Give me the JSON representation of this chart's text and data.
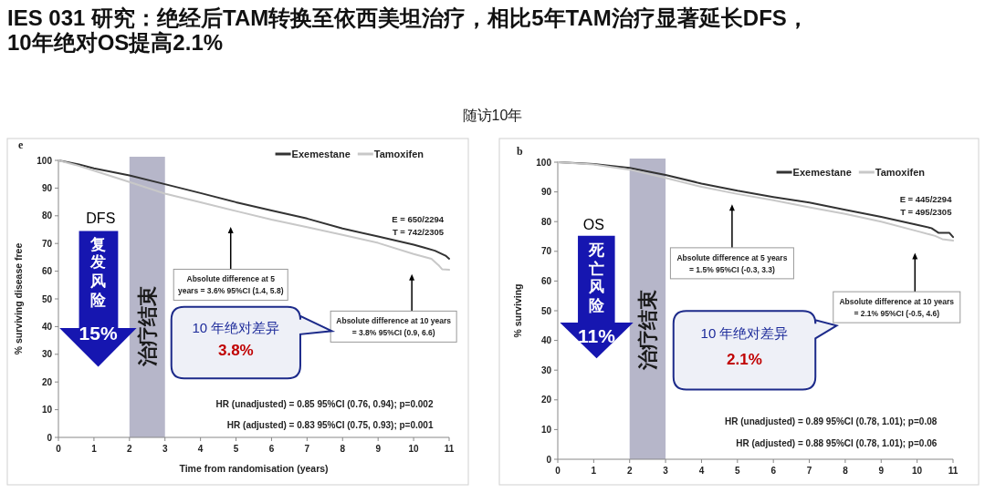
{
  "chart_data": [
    {
      "type": "line",
      "title": "IES 031 研究：绝经后TAM转换至依西美坦治疗，相比5年TAM治疗显著延长DFS，10年绝对OS提高2.1%",
      "xlabel": "Time from randomisation (years)",
      "ylabel": "% surviving disease free",
      "xlim": [
        0,
        11
      ],
      "ylim": [
        0,
        100
      ],
      "xticks": [
        0,
        1,
        2,
        3,
        4,
        5,
        6,
        7,
        8,
        9,
        10,
        11
      ],
      "yticks": [
        0,
        10,
        20,
        30,
        40,
        50,
        60,
        70,
        80,
        90,
        100
      ],
      "legend": "top right",
      "series": [
        {
          "name": "Exemestane",
          "color": "#333333",
          "x": [
            0,
            0.58,
            1,
            2,
            3,
            4,
            5,
            6,
            7,
            8,
            9,
            10,
            10.3,
            10.6,
            10.9,
            11
          ],
          "values": [
            100,
            98.5,
            97.1,
            94.6,
            91.4,
            88.2,
            84.9,
            81.9,
            79.0,
            75.4,
            72.5,
            69.6,
            68.5,
            67.4,
            65.6,
            64.5
          ]
        },
        {
          "name": "Tamoxifen",
          "color": "#c8c8c8",
          "x": [
            0,
            0.5,
            1,
            2,
            3,
            4,
            5,
            6,
            7,
            8,
            9,
            10,
            10.5,
            10.7,
            10.8,
            11
          ],
          "values": [
            100,
            98.3,
            96.3,
            92.2,
            88.0,
            84.9,
            81.7,
            78.6,
            75.9,
            73.1,
            70.2,
            66.2,
            64.5,
            62.2,
            60.7,
            60.5
          ]
        }
      ],
      "bands": [
        {
          "axis": "x",
          "from": 2,
          "to": 3,
          "label": "治疗结束",
          "color": "#a9a9bf"
        }
      ],
      "annotations": [
        "e",
        "DFS",
        "复发风险",
        "15%",
        "E = 650/2294",
        "T = 742/2305",
        "Absolute difference at 5 years = 3.6% 95%CI (1.4, 5.8)",
        "Absolute difference at 10 years = 3.8% 95%CI (0.9, 6.6)",
        "10 年绝对差异",
        "3.8%",
        "HR (unadjusted) = 0.85 95%CI (0.76, 0.94); p=0.002",
        "HR (adjusted) = 0.83 95%CI (0.75, 0.93); p=0.001"
      ]
    },
    {
      "type": "line",
      "subtitle": "随访10年",
      "ylabel": "% surviving",
      "xlim": [
        0,
        11
      ],
      "ylim": [
        0,
        100
      ],
      "xticks": [
        0,
        1,
        2,
        3,
        4,
        5,
        6,
        7,
        8,
        9,
        10,
        11
      ],
      "yticks": [
        0,
        10,
        20,
        30,
        40,
        50,
        60,
        70,
        80,
        90,
        100
      ],
      "legend": "top right",
      "series": [
        {
          "name": "Exemestane",
          "color": "#333333",
          "x": [
            0,
            1,
            2,
            3,
            4,
            5,
            6,
            7,
            8,
            9,
            10,
            10.4,
            10.6,
            10.9,
            11
          ],
          "values": [
            100,
            99.4,
            98.1,
            95.7,
            92.8,
            90.4,
            88.3,
            86.4,
            84.0,
            81.6,
            78.9,
            77.8,
            76.2,
            76.2,
            74.8
          ]
        },
        {
          "name": "Tamoxifen",
          "color": "#c8c8c8",
          "x": [
            0,
            1,
            2,
            3,
            4,
            5,
            6,
            7,
            8,
            9,
            10,
            10.5,
            10.7,
            11
          ],
          "values": [
            100,
            99.2,
            97.5,
            94.7,
            91.7,
            89.3,
            87.2,
            84.8,
            82.6,
            80.0,
            76.8,
            75.2,
            74.1,
            73.6
          ]
        }
      ],
      "bands": [
        {
          "axis": "x",
          "from": 2,
          "to": 3,
          "label": "治疗结束",
          "color": "#a9a9bf"
        }
      ],
      "annotations": [
        "b",
        "OS",
        "死亡风险",
        "11%",
        "E = 445/2294",
        "T = 495/2305",
        "Absolute difference at 5 years = 1.5% 95%CI (-0.3, 3.3)",
        "Absolute difference at 10 years = 2.1% 95%CI (-0.5, 4.6)",
        "10 年绝对差异",
        "2.1%",
        "HR (unadjusted) = 0.89 95%CI (0.78, 1.01); p=0.08",
        "HR (adjusted) = 0.88 95%CI (0.78, 1.01); p=0.06"
      ]
    }
  ]
}
